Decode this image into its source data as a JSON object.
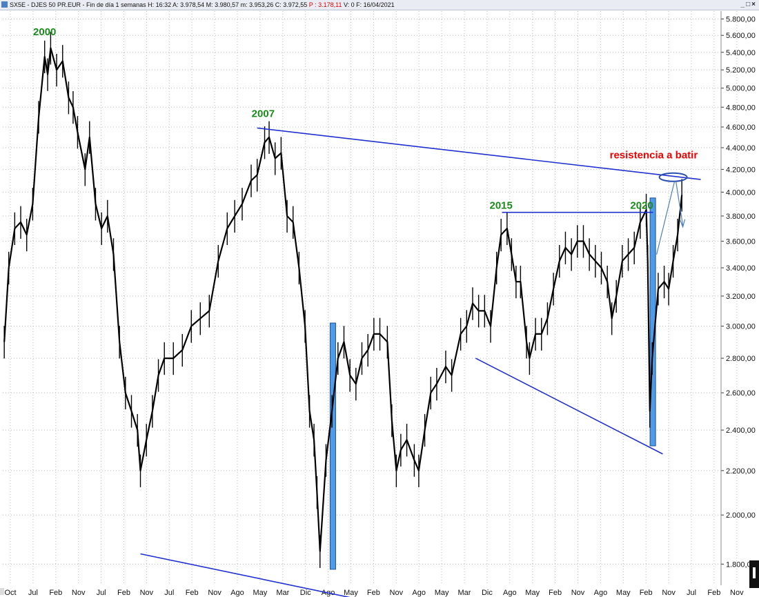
{
  "window": {
    "title_prefix": "SX5E - DJES 50 PR.EUR - Fin de día 1 semanas  H: 16:32  A: 3.978,54  M: 3.980,57  m: 3.953,26  C: 3.972,55 ",
    "title_p": "P : 3.178,11",
    "title_suffix": "  V: 0  F: 16/04/2021",
    "buttons": "_□×"
  },
  "colors": {
    "background": "#ffffff",
    "candles": "#000000",
    "trendline": "#1f2fd0",
    "bar_fill": "#4f9be6",
    "annotation_green": "#1a8a1a",
    "annotation_red": "#ee0000",
    "grid": "#b8b8b8"
  },
  "chart_data": {
    "type": "line",
    "title": "",
    "series_label": "",
    "y_scale": "log",
    "ylim": [
      1720,
      5900
    ],
    "grid": true,
    "y_ticks": [
      "5.800,00",
      "5.600,00",
      "5.400,00",
      "5.200,00",
      "5.000,00",
      "4.800,00",
      "4.600,00",
      "4.400,00",
      "4.200,00",
      "4.000,00",
      "3.800,00",
      "3.600,00",
      "3.400,00",
      "3.200,00",
      "3.000,00",
      "2.800,00",
      "2.600,00",
      "2.400,00",
      "2.200,00",
      "2.000,00",
      "1.800,00"
    ],
    "y_tick_values": [
      5800,
      5600,
      5400,
      5200,
      5000,
      4800,
      4600,
      4400,
      4200,
      4000,
      3800,
      3600,
      3400,
      3200,
      3000,
      2800,
      2600,
      2400,
      2200,
      2000,
      1800
    ],
    "x_tick_labels": [
      "Oct",
      "Jul",
      "Feb",
      "Nov",
      "Jul",
      "Feb",
      "Nov",
      "Jul",
      "Feb",
      "Nov",
      "Ago",
      "May",
      "Mar",
      "Dic",
      "Ago",
      "May",
      "Feb",
      "Nov",
      "Ago",
      "May",
      "Mar",
      "Dic",
      "Ago",
      "May",
      "Feb",
      "Nov",
      "Ago",
      "May",
      "Feb",
      "Nov",
      "Jul",
      "Feb",
      "Nov"
    ],
    "x_range": [
      1998.6,
      2022.6
    ],
    "series": [
      {
        "x": [
          1998.65,
          1998.8,
          1999.0,
          1999.2,
          1999.4,
          1999.6,
          1999.8,
          2000.0,
          2000.1,
          2000.2,
          2000.4,
          2000.6,
          2000.8,
          2000.95,
          2001.1,
          2001.35,
          2001.5,
          2001.7,
          2001.9,
          2002.1,
          2002.3,
          2002.5,
          2002.7,
          2002.9,
          2003.1,
          2003.2,
          2003.4,
          2003.6,
          2003.8,
          2004.0,
          2004.3,
          2004.6,
          2004.9,
          2005.2,
          2005.5,
          2005.8,
          2006.1,
          2006.35,
          2006.6,
          2006.9,
          2007.1,
          2007.35,
          2007.5,
          2007.7,
          2007.9,
          2008.1,
          2008.3,
          2008.5,
          2008.7,
          2008.85,
          2009.0,
          2009.1,
          2009.2,
          2009.4,
          2009.6,
          2009.8,
          2010.0,
          2010.2,
          2010.4,
          2010.6,
          2010.8,
          2011.0,
          2011.2,
          2011.45,
          2011.6,
          2011.75,
          2011.9,
          2012.1,
          2012.35,
          2012.5,
          2012.7,
          2012.9,
          2013.1,
          2013.4,
          2013.6,
          2013.9,
          2014.1,
          2014.3,
          2014.5,
          2014.7,
          2014.9,
          2015.1,
          2015.25,
          2015.45,
          2015.6,
          2015.75,
          2015.9,
          2016.1,
          2016.2,
          2016.4,
          2016.6,
          2016.8,
          2017.0,
          2017.2,
          2017.4,
          2017.6,
          2017.8,
          2018.0,
          2018.2,
          2018.4,
          2018.6,
          2018.8,
          2018.95,
          2019.1,
          2019.3,
          2019.5,
          2019.7,
          2019.9,
          2020.1,
          2020.15,
          2020.22,
          2020.3,
          2020.5,
          2020.7,
          2020.85,
          2021.0,
          2021.15,
          2021.29
        ],
        "values": [
          2900,
          3400,
          3700,
          3750,
          3650,
          3900,
          4700,
          5350,
          5150,
          5450,
          5200,
          5300,
          4900,
          4800,
          4550,
          4200,
          4500,
          3900,
          3700,
          3800,
          3500,
          2900,
          2600,
          2500,
          2400,
          2200,
          2350,
          2500,
          2700,
          2800,
          2800,
          2850,
          3000,
          3050,
          3100,
          3450,
          3700,
          3800,
          3900,
          4100,
          4150,
          4450,
          4500,
          4300,
          4350,
          3800,
          3750,
          3400,
          3000,
          2500,
          2350,
          2100,
          1850,
          2250,
          2500,
          2800,
          2900,
          2700,
          2650,
          2800,
          2850,
          2950,
          2950,
          2900,
          2450,
          2200,
          2300,
          2350,
          2250,
          2200,
          2400,
          2600,
          2650,
          2750,
          2700,
          2950,
          3000,
          3150,
          3100,
          3100,
          3000,
          3400,
          3650,
          3700,
          3500,
          3300,
          3300,
          2900,
          2800,
          2950,
          2950,
          3050,
          3250,
          3450,
          3550,
          3500,
          3600,
          3600,
          3500,
          3450,
          3400,
          3300,
          3050,
          3200,
          3450,
          3500,
          3550,
          3750,
          3850,
          3450,
          2500,
          2800,
          3250,
          3300,
          3250,
          3450,
          3650,
          3975
        ]
      }
    ],
    "annotations": [
      {
        "text": "2000",
        "x": 2000.0,
        "y": 5600,
        "color": "green"
      },
      {
        "text": "2007",
        "x": 2007.3,
        "y": 4700,
        "color": "green"
      },
      {
        "text": "2015",
        "x": 2015.25,
        "y": 3860,
        "color": "green"
      },
      {
        "text": "2020",
        "x": 2019.95,
        "y": 3860,
        "color": "green"
      },
      {
        "text": "resistencia a batir",
        "x": 2020.35,
        "y": 4300,
        "color": "red"
      }
    ],
    "trendlines": [
      {
        "x1": 2007.1,
        "y1": 4590,
        "x2": 2021.92,
        "y2": 4110
      },
      {
        "x1": 2003.2,
        "y1": 1840,
        "x2": 2011.35,
        "y2": 1650
      },
      {
        "x1": 2015.28,
        "y1": 3830,
        "x2": 2020.33,
        "y2": 3830
      },
      {
        "x1": 2014.4,
        "y1": 2800,
        "x2": 2020.65,
        "y2": 2280
      }
    ],
    "highlight_bars": [
      {
        "x": 2009.63,
        "low": 1780,
        "high": 3020
      },
      {
        "x": 2020.32,
        "low": 2320,
        "high": 3950
      }
    ],
    "resistance_ellipse": {
      "x": 2021.0,
      "y": 4130
    }
  }
}
